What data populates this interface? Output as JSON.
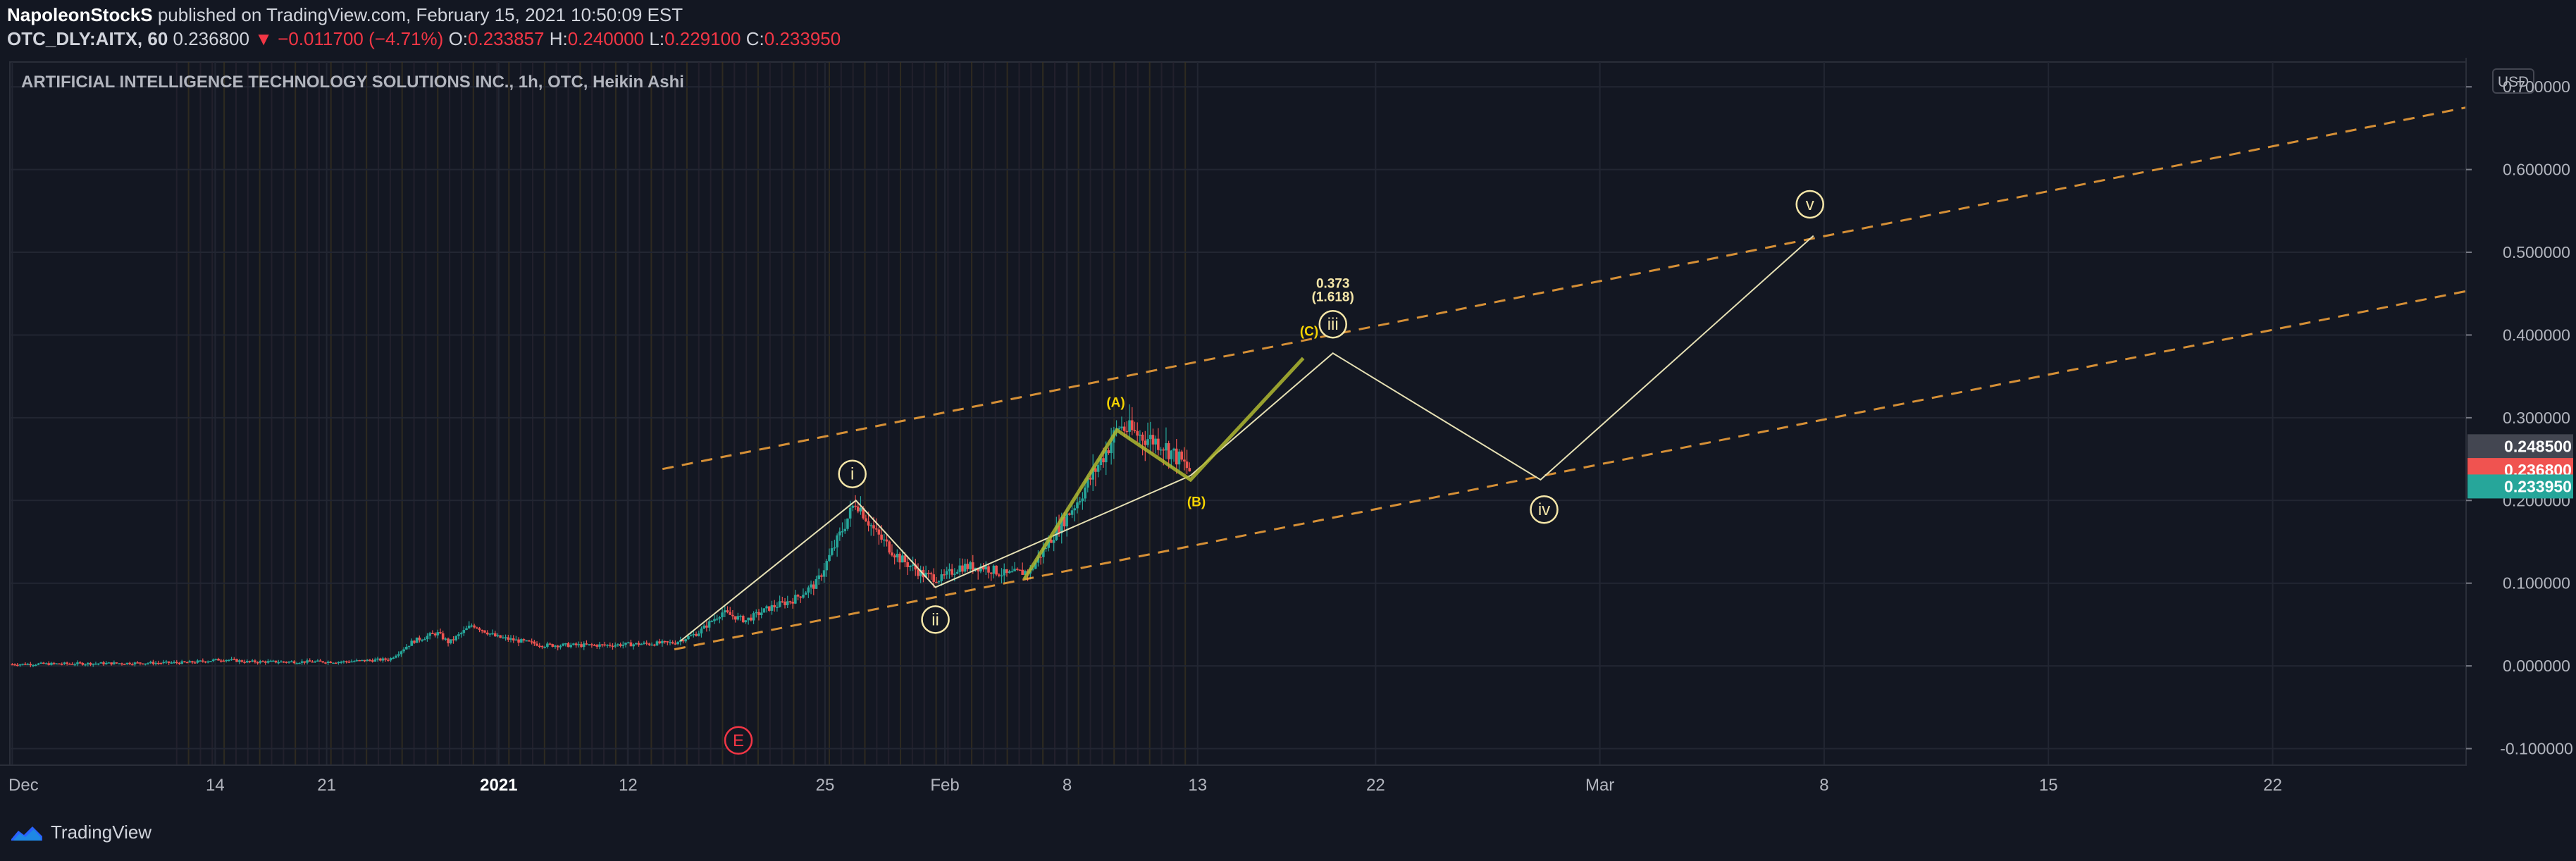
{
  "header": {
    "author": "NapoleonStockS",
    "published_text": " published on TradingView.com, February 15, 2021 10:50:09 EST",
    "symbol": "OTC_DLY:AITX, 60",
    "last_price": "0.236800",
    "change_arrow": "▼",
    "change": "−0.011700 (−4.71%)",
    "open_label": "O:",
    "open": "0.233857",
    "high_label": "H:",
    "high": "0.240000",
    "low_label": "L:",
    "low": "0.229100",
    "close_label": "C:",
    "close": "0.233950"
  },
  "footer": {
    "brand": "TradingView",
    "brand_icon": "tradingview-logo-icon"
  },
  "chart_data": {
    "type": "candlestick",
    "title": "ARTIFICIAL INTELLIGENCE TECHNOLOGY SOLUTIONS INC., 1h, OTC, Heikin Ashi",
    "currency": "USD",
    "y_axis_side": "right",
    "ylim": [
      -0.12,
      0.73
    ],
    "y_ticks": [
      "0.700000",
      "0.600000",
      "0.500000",
      "0.400000",
      "0.300000",
      "0.200000",
      "0.100000",
      "0.000000",
      "-0.100000"
    ],
    "y_tick_values": [
      0.7,
      0.6,
      0.5,
      0.4,
      0.3,
      0.2,
      0.1,
      0.0,
      -0.1
    ],
    "x_ticks": [
      {
        "label": "Dec",
        "t": 0.2
      },
      {
        "label": "14",
        "t": 17.3
      },
      {
        "label": "21",
        "t": 26.7
      },
      {
        "label": "2021",
        "t": 41.2
      },
      {
        "label": "12",
        "t": 52.1
      },
      {
        "label": "25",
        "t": 68.7
      },
      {
        "label": "Feb",
        "t": 78.8
      },
      {
        "label": "8",
        "t": 89.1
      },
      {
        "label": "13",
        "t": 100.1
      },
      {
        "label": "22",
        "t": 115.1
      },
      {
        "label": "Mar",
        "t": 134.0
      },
      {
        "label": "8",
        "t": 152.9
      },
      {
        "label": "15",
        "t": 171.8
      },
      {
        "label": "22",
        "t": 190.7
      }
    ],
    "price_labels": [
      {
        "value": "0.248500",
        "y": 0.2485,
        "bg": "#434651"
      },
      {
        "value": "0.236800",
        "y": 0.2368,
        "bg": "#f05350"
      },
      {
        "value": "0.233950",
        "y": 0.23395,
        "bg": "#26a69a"
      }
    ],
    "candle_path": [
      {
        "t": 0,
        "v": 0.002
      },
      {
        "t": 15,
        "v": 0.004
      },
      {
        "t": 18,
        "v": 0.008
      },
      {
        "t": 20,
        "v": 0.005
      },
      {
        "t": 28,
        "v": 0.005
      },
      {
        "t": 32,
        "v": 0.008
      },
      {
        "t": 34,
        "v": 0.03
      },
      {
        "t": 36,
        "v": 0.04
      },
      {
        "t": 37,
        "v": 0.028
      },
      {
        "t": 39,
        "v": 0.05
      },
      {
        "t": 41,
        "v": 0.035
      },
      {
        "t": 45,
        "v": 0.025
      },
      {
        "t": 50,
        "v": 0.025
      },
      {
        "t": 56,
        "v": 0.028
      },
      {
        "t": 58,
        "v": 0.04
      },
      {
        "t": 60,
        "v": 0.065
      },
      {
        "t": 62,
        "v": 0.055
      },
      {
        "t": 64,
        "v": 0.07
      },
      {
        "t": 66,
        "v": 0.08
      },
      {
        "t": 68,
        "v": 0.1
      },
      {
        "t": 70,
        "v": 0.16
      },
      {
        "t": 71.3,
        "v": 0.2
      },
      {
        "t": 73,
        "v": 0.16
      },
      {
        "t": 75,
        "v": 0.13
      },
      {
        "t": 77,
        "v": 0.11
      },
      {
        "t": 78.5,
        "v": 0.105
      },
      {
        "t": 80,
        "v": 0.12
      },
      {
        "t": 82,
        "v": 0.12
      },
      {
        "t": 84,
        "v": 0.11
      },
      {
        "t": 86,
        "v": 0.115
      },
      {
        "t": 88,
        "v": 0.16
      },
      {
        "t": 90,
        "v": 0.2
      },
      {
        "t": 92,
        "v": 0.25
      },
      {
        "t": 93.5,
        "v": 0.29
      },
      {
        "t": 95,
        "v": 0.28
      },
      {
        "t": 97,
        "v": 0.27
      },
      {
        "t": 98.5,
        "v": 0.25
      },
      {
        "t": 99.5,
        "v": 0.235
      }
    ],
    "channel_lines": [
      {
        "t1": 55,
        "v1": 0.238,
        "t2": 207,
        "v2": 0.675,
        "color": "#f7a53a"
      },
      {
        "t1": 56,
        "v1": 0.02,
        "t2": 207,
        "v2": 0.453,
        "color": "#f7a53a"
      }
    ],
    "wave_path_primary": [
      {
        "t": 56.5,
        "v": 0.03
      },
      {
        "t": 71.3,
        "v": 0.2
      },
      {
        "t": 78,
        "v": 0.095
      },
      {
        "t": 99.5,
        "v": 0.23
      },
      {
        "t": 111.5,
        "v": 0.378
      },
      {
        "t": 129,
        "v": 0.225
      },
      {
        "t": 152,
        "v": 0.52
      }
    ],
    "wave_path_abc": [
      {
        "t": 85.5,
        "v": 0.105
      },
      {
        "t": 93.3,
        "v": 0.285
      },
      {
        "t": 99.5,
        "v": 0.225
      },
      {
        "t": 109,
        "v": 0.372
      }
    ],
    "wave_labels": [
      {
        "text": "i",
        "t": 71.0,
        "v": 0.232,
        "style": "circle",
        "color": "#f5e6a8"
      },
      {
        "text": "ii",
        "t": 78.0,
        "v": 0.056,
        "style": "circle",
        "color": "#f5e6a8"
      },
      {
        "text": "iii",
        "t": 111.5,
        "v": 0.413,
        "style": "circle",
        "color": "#f5e6a8"
      },
      {
        "text": "iv",
        "t": 129.3,
        "v": 0.189,
        "style": "circle",
        "color": "#f5e6a8"
      },
      {
        "text": "v",
        "t": 151.7,
        "v": 0.558,
        "style": "circle",
        "color": "#f5e6a8"
      },
      {
        "text": "E",
        "t": 61.4,
        "v": -0.09,
        "style": "circle",
        "color": "#f23645"
      },
      {
        "text": "(A)",
        "t": 93.2,
        "v": 0.313,
        "style": "text",
        "color": "#f5d300"
      },
      {
        "text": "(B)",
        "t": 100.0,
        "v": 0.193,
        "style": "text",
        "color": "#f5d300"
      },
      {
        "text": "(C)",
        "t": 109.5,
        "v": 0.399,
        "style": "text",
        "color": "#f5d300"
      },
      {
        "text": "0.373",
        "t": 111.5,
        "v": 0.457,
        "style": "text",
        "color": "#f5e6a8"
      },
      {
        "text": "(1.618)",
        "t": 111.5,
        "v": 0.441,
        "style": "text",
        "color": "#f5e6a8"
      }
    ],
    "session_stripes_range": [
      14,
      100
    ],
    "colors": {
      "up": "#26a69a",
      "down": "#ef5350",
      "background": "#131722",
      "grid": "#222632",
      "wave": "#e6e0b4",
      "abc": "#b0b830"
    }
  }
}
